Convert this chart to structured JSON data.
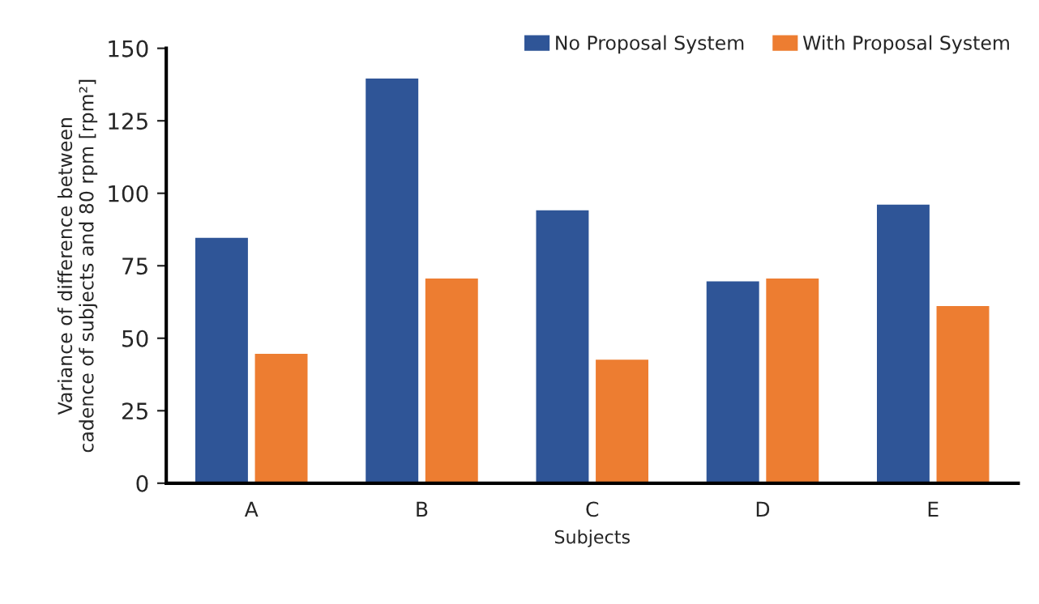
{
  "chart_data": {
    "type": "bar",
    "categories": [
      "A",
      "B",
      "C",
      "D",
      "E"
    ],
    "series": [
      {
        "name": "No Proposal System",
        "color": "#2f5597",
        "values": [
          85,
          140,
          94.5,
          70,
          96.5
        ]
      },
      {
        "name": "With Proposal System",
        "color": "#ed7d31",
        "values": [
          45,
          71,
          43,
          71,
          61.5
        ]
      }
    ],
    "xlabel": "Subjects",
    "ylabel": "Variance of difference between\ncadence of subjects and 80 rpm [rpm²]",
    "ylim": [
      0,
      150
    ],
    "yticks": [
      0,
      25,
      50,
      75,
      100,
      125,
      150
    ],
    "grid": false,
    "legend": "top right"
  }
}
